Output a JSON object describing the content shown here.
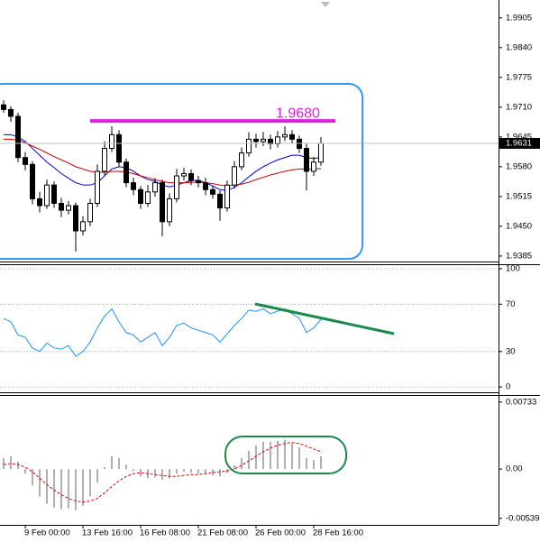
{
  "chart_data": [
    {
      "type": "candlestick",
      "open": [
        1.9715,
        1.9705,
        1.969,
        1.96,
        1.9585,
        1.951,
        1.9495,
        1.954,
        1.95,
        1.9485,
        1.9495,
        1.944,
        1.946,
        1.95,
        1.957,
        1.962,
        1.965,
        1.959,
        1.9545,
        1.953,
        1.95,
        1.9525,
        1.9545,
        1.946,
        1.951,
        1.956,
        1.9565,
        1.955,
        1.9545,
        1.953,
        1.952,
        1.949,
        1.954,
        1.958,
        1.961,
        1.964,
        1.9635,
        1.964,
        1.963,
        1.9645,
        1.965,
        1.964,
        1.962,
        1.957,
        1.959
      ],
      "high": [
        1.9725,
        1.9712,
        1.9698,
        1.9612,
        1.9592,
        1.9525,
        1.9552,
        1.9548,
        1.9512,
        1.9505,
        1.9502,
        1.9472,
        1.951,
        1.9585,
        1.9635,
        1.9668,
        1.966,
        1.9598,
        1.9556,
        1.9538,
        1.954,
        1.9555,
        1.9552,
        1.9522,
        1.9575,
        1.9578,
        1.9574,
        1.956,
        1.9556,
        1.9538,
        1.9528,
        1.955,
        1.9592,
        1.9622,
        1.9655,
        1.9652,
        1.9656,
        1.965,
        1.9658,
        1.9668,
        1.966,
        1.9648,
        1.963,
        1.9602,
        1.9645
      ],
      "low": [
        1.9698,
        1.9678,
        1.959,
        1.9572,
        1.9498,
        1.948,
        1.9488,
        1.949,
        1.947,
        1.9476,
        1.9395,
        1.943,
        1.945,
        1.9492,
        1.9562,
        1.9612,
        1.958,
        1.9535,
        1.9518,
        1.9488,
        1.9492,
        1.9515,
        1.9428,
        1.945,
        1.9502,
        1.955,
        1.954,
        1.9535,
        1.9518,
        1.951,
        1.9462,
        1.9482,
        1.9532,
        1.9572,
        1.9602,
        1.9622,
        1.9625,
        1.9618,
        1.9622,
        1.9636,
        1.963,
        1.961,
        1.9528,
        1.956,
        1.9582
      ],
      "close": [
        1.9705,
        1.969,
        1.96,
        1.9585,
        1.951,
        1.9495,
        1.954,
        1.95,
        1.9485,
        1.9495,
        1.944,
        1.946,
        1.95,
        1.957,
        1.962,
        1.965,
        1.959,
        1.9545,
        1.953,
        1.95,
        1.9525,
        1.9545,
        1.946,
        1.951,
        1.956,
        1.9565,
        1.955,
        1.9545,
        1.953,
        1.952,
        1.949,
        1.954,
        1.958,
        1.961,
        1.964,
        1.9635,
        1.964,
        1.963,
        1.9645,
        1.965,
        1.964,
        1.962,
        1.957,
        1.959,
        1.9631
      ],
      "moving_averages": [
        {
          "color": "#0000cc",
          "values": [
            1.965,
            1.965,
            1.9645,
            1.9635,
            1.962,
            1.9605,
            1.959,
            1.9578,
            1.9565,
            1.9555,
            1.9545,
            1.954,
            1.954,
            1.9545,
            1.956,
            1.9575,
            1.958,
            1.9578,
            1.957,
            1.956,
            1.9552,
            1.9548,
            1.954,
            1.9536,
            1.954,
            1.9545,
            1.955,
            1.955,
            1.9545,
            1.9538,
            1.953,
            1.9528,
            1.9535,
            1.9545,
            1.9558,
            1.957,
            1.958,
            1.9588,
            1.9595,
            1.96,
            1.9605,
            1.9605,
            1.96,
            1.9598,
            1.96
          ]
        },
        {
          "color": "#cc0000",
          "values": [
            1.964,
            1.964,
            1.9638,
            1.9632,
            1.9625,
            1.9618,
            1.961,
            1.9602,
            1.9595,
            1.9588,
            1.958,
            1.9575,
            1.957,
            1.9568,
            1.9568,
            1.957,
            1.957,
            1.9568,
            1.9565,
            1.956,
            1.9556,
            1.9552,
            1.9548,
            1.9545,
            1.9545,
            1.9545,
            1.9546,
            1.9546,
            1.9545,
            1.9543,
            1.954,
            1.9538,
            1.954,
            1.9542,
            1.9546,
            1.9552,
            1.9557,
            1.9562,
            1.9566,
            1.957,
            1.9573,
            1.9575,
            1.9575,
            1.9575,
            1.9576
          ]
        }
      ],
      "ylim": [
        1.9373,
        1.9944
      ],
      "yticks": [
        1.9905,
        {
          "value": 1.984,
          "label": "1.9840"
        },
        1.9775,
        {
          "value": 1.971,
          "label": "1.9710"
        },
        1.9645,
        {
          "value": 1.958,
          "label": "1.9580"
        },
        1.9515,
        {
          "value": 1.945,
          "label": "1.9450"
        },
        1.9385
      ],
      "last_price": 1.9631,
      "annotation": {
        "text": "1.9680",
        "value": 1.968,
        "color": "#e020e0"
      }
    },
    {
      "type": "line",
      "color": "#1e90ff",
      "values": [
        58,
        55,
        44,
        42,
        33,
        30,
        37,
        33,
        32,
        35,
        26,
        30,
        38,
        50,
        60,
        66,
        55,
        46,
        44,
        38,
        42,
        46,
        35,
        42,
        52,
        54,
        50,
        48,
        46,
        44,
        38,
        45,
        52,
        58,
        65,
        64,
        66,
        62,
        64,
        66,
        62,
        58,
        46,
        50,
        57
      ],
      "ylim": [
        -4.5,
        103.8
      ],
      "yticks": [
        100,
        70,
        30,
        0
      ]
    },
    {
      "type": "macd",
      "color": "#b0b0b0",
      "values": [
        0.0012,
        0.0014,
        0.0008,
        -0.0005,
        -0.0018,
        -0.003,
        -0.0038,
        -0.0042,
        -0.0044,
        -0.0043,
        -0.0045,
        -0.004,
        -0.003,
        -0.0015,
        0.0002,
        0.0014,
        0.0012,
        0.0005,
        -0.0002,
        -0.0008,
        -0.001,
        -0.0009,
        -0.0012,
        -0.001,
        -0.0005,
        -0.0003,
        -0.0004,
        -0.0005,
        -0.0006,
        -0.0007,
        -0.0008,
        -0.0004,
        0.0004,
        0.0012,
        0.002,
        0.0026,
        0.003,
        0.003,
        0.0031,
        0.0032,
        0.0028,
        0.0024,
        0.0012,
        0.001,
        0.0014
      ],
      "signal": {
        "color": "#dd0000",
        "values": [
          0.0005,
          0.0006,
          0.0005,
          0.0002,
          -0.0003,
          -0.001,
          -0.0017,
          -0.0023,
          -0.0028,
          -0.0032,
          -0.0035,
          -0.0036,
          -0.0035,
          -0.0032,
          -0.0026,
          -0.0019,
          -0.0013,
          -0.0008,
          -0.0005,
          -0.0004,
          -0.0005,
          -0.0006,
          -0.0007,
          -0.0008,
          -0.0008,
          -0.0007,
          -0.0006,
          -0.0006,
          -0.0005,
          -0.0004,
          -0.0003,
          -0.0002,
          0.0,
          0.0004,
          0.0009,
          0.0014,
          0.0019,
          0.0023,
          0.0026,
          0.0028,
          0.0029,
          0.0028,
          0.0025,
          0.0022,
          0.0019
        ]
      },
      "ylim": [
        -0.0061,
        0.0081
      ],
      "yticks": [
        0.00733,
        {
          "value": 0,
          "label": "0.00"
        },
        -0.00539
      ],
      "categories": [
        null,
        null,
        null,
        "9 Feb 00:00",
        null,
        null,
        null,
        null,
        null,
        null,
        null,
        "13 Feb 16:00",
        null,
        null,
        null,
        null,
        null,
        null,
        null,
        "16 Feb 08:00",
        null,
        null,
        null,
        null,
        null,
        null,
        null,
        "21 Feb 08:00",
        null,
        null,
        null,
        null,
        null,
        null,
        null,
        "26 Feb 00:00",
        null,
        null,
        null,
        null,
        null,
        null,
        null,
        "28 Feb 16:00",
        null
      ]
    }
  ]
}
